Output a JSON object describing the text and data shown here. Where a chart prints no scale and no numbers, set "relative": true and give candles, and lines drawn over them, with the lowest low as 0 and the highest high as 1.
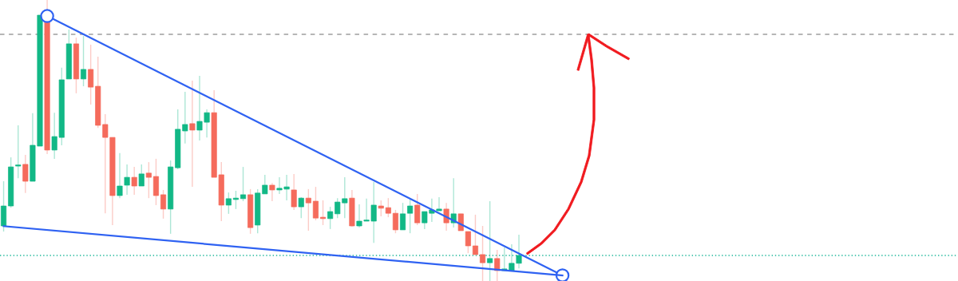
{
  "chart_data": {
    "type": "candlestick",
    "relative": true,
    "categories": [
      null,
      null,
      null,
      null,
      null,
      null,
      null,
      null,
      null,
      null,
      null,
      null,
      null,
      null,
      null,
      null,
      null,
      null,
      null,
      null,
      null,
      null,
      null,
      null,
      null,
      null,
      null,
      null,
      null,
      null,
      null,
      null,
      null,
      null,
      null,
      null,
      null,
      null,
      null,
      null,
      null,
      null,
      null,
      null,
      null,
      null,
      null,
      null,
      null,
      null,
      null,
      null,
      null,
      null,
      null,
      null,
      null,
      null,
      null,
      null,
      null,
      null,
      null,
      null,
      null,
      null,
      null,
      null,
      null,
      null,
      null,
      null,
      null,
      null,
      null,
      null,
      null,
      null,
      null,
      null,
      null,
      null,
      null,
      null,
      null,
      null,
      null,
      null,
      null,
      null,
      null,
      null,
      null,
      null,
      null,
      null,
      null,
      null,
      null,
      null,
      null,
      null,
      null,
      null,
      null,
      null,
      null,
      null,
      null,
      null,
      null,
      null,
      null,
      null,
      null,
      null,
      null,
      null,
      null,
      null,
      null,
      null,
      null,
      null,
      null,
      null,
      null,
      null,
      null,
      null,
      null,
      null
    ],
    "ohlc": [
      [
        0.196,
        0.355,
        0.176,
        0.267
      ],
      [
        0.267,
        0.44,
        0.261,
        0.406
      ],
      [
        0.409,
        0.554,
        0.366,
        0.412
      ],
      [
        0.415,
        0.449,
        0.313,
        0.355
      ],
      [
        0.355,
        0.597,
        0.355,
        0.483
      ],
      [
        0.48,
        0.946,
        0.48,
        0.946
      ],
      [
        0.92,
        1.0,
        0.452,
        0.466
      ],
      [
        0.466,
        0.599,
        0.435,
        0.514
      ],
      [
        0.511,
        0.759,
        0.483,
        0.716
      ],
      [
        0.719,
        0.895,
        0.719,
        0.844
      ],
      [
        0.844,
        0.866,
        0.668,
        0.719
      ],
      [
        0.719,
        0.872,
        0.693,
        0.753
      ],
      [
        0.753,
        0.841,
        0.628,
        0.69
      ],
      [
        0.693,
        0.798,
        0.545,
        0.554
      ],
      [
        0.557,
        0.594,
        0.241,
        0.511
      ],
      [
        0.511,
        0.511,
        0.199,
        0.304
      ],
      [
        0.304,
        0.455,
        0.295,
        0.338
      ],
      [
        0.341,
        0.415,
        0.307,
        0.369
      ],
      [
        0.369,
        0.406,
        0.307,
        0.338
      ],
      [
        0.338,
        0.415,
        0.338,
        0.381
      ],
      [
        0.384,
        0.423,
        0.295,
        0.369
      ],
      [
        0.372,
        0.435,
        0.27,
        0.304
      ],
      [
        0.307,
        0.324,
        0.222,
        0.256
      ],
      [
        0.256,
        0.429,
        0.168,
        0.406
      ],
      [
        0.403,
        0.611,
        0.398,
        0.54
      ],
      [
        0.534,
        0.673,
        0.489,
        0.557
      ],
      [
        0.56,
        0.713,
        0.335,
        0.537
      ],
      [
        0.537,
        0.73,
        0.5,
        0.568
      ],
      [
        0.565,
        0.611,
        0.511,
        0.599
      ],
      [
        0.599,
        0.679,
        0.369,
        0.369
      ],
      [
        0.378,
        0.423,
        0.213,
        0.27
      ],
      [
        0.27,
        0.315,
        0.239,
        0.293
      ],
      [
        0.29,
        0.321,
        0.256,
        0.295
      ],
      [
        0.293,
        0.406,
        0.284,
        0.307
      ],
      [
        0.307,
        0.327,
        0.168,
        0.19
      ],
      [
        0.199,
        0.327,
        0.17,
        0.313
      ],
      [
        0.31,
        0.378,
        0.31,
        0.341
      ],
      [
        0.341,
        0.349,
        0.284,
        0.324
      ],
      [
        0.324,
        0.369,
        0.31,
        0.33
      ],
      [
        0.327,
        0.378,
        0.287,
        0.335
      ],
      [
        0.324,
        0.381,
        0.253,
        0.264
      ],
      [
        0.264,
        0.298,
        0.224,
        0.295
      ],
      [
        0.295,
        0.327,
        0.179,
        0.278
      ],
      [
        0.284,
        0.335,
        0.216,
        0.224
      ],
      [
        0.227,
        0.287,
        0.199,
        0.222
      ],
      [
        0.222,
        0.264,
        0.185,
        0.247
      ],
      [
        0.239,
        0.295,
        0.224,
        0.281
      ],
      [
        0.278,
        0.369,
        0.224,
        0.293
      ],
      [
        0.295,
        0.324,
        0.193,
        0.196
      ],
      [
        0.196,
        0.273,
        0.19,
        0.213
      ],
      [
        0.213,
        0.293,
        0.213,
        0.216
      ],
      [
        0.213,
        0.352,
        0.136,
        0.27
      ],
      [
        0.267,
        0.287,
        0.23,
        0.259
      ],
      [
        0.261,
        0.295,
        0.227,
        0.241
      ],
      [
        0.241,
        0.253,
        0.17,
        0.182
      ],
      [
        0.182,
        0.278,
        0.182,
        0.239
      ],
      [
        0.241,
        0.29,
        0.17,
        0.267
      ],
      [
        0.27,
        0.31,
        0.199,
        0.207
      ],
      [
        0.207,
        0.247,
        0.185,
        0.247
      ],
      [
        0.241,
        0.293,
        0.21,
        0.253
      ],
      [
        0.25,
        0.298,
        0.25,
        0.256
      ],
      [
        0.256,
        0.278,
        0.179,
        0.207
      ],
      [
        0.207,
        0.366,
        0.19,
        0.239
      ],
      [
        0.239,
        0.239,
        0.179,
        0.179
      ],
      [
        0.176,
        0.176,
        0.099,
        0.125
      ],
      [
        0.125,
        0.236,
        0.094,
        0.094
      ],
      [
        0.094,
        0.196,
        0.0,
        0.065
      ],
      [
        0.065,
        0.284,
        0.0,
        0.08
      ],
      [
        0.08,
        0.111,
        0.0,
        0.037
      ],
      [
        0.037,
        0.119,
        0.037,
        0.043
      ],
      [
        0.037,
        0.131,
        0.037,
        0.063
      ],
      [
        0.063,
        0.165,
        0.045,
        0.091
      ],
      null,
      null,
      null,
      null,
      null,
      null,
      null,
      null,
      null,
      null,
      null,
      null,
      null,
      null,
      null,
      null,
      null,
      null,
      null,
      null,
      null,
      null,
      null,
      null,
      null,
      null,
      null,
      null,
      null,
      null,
      null,
      null,
      null,
      null,
      null,
      null,
      null,
      null,
      null,
      null,
      null,
      null,
      null,
      null,
      null,
      null,
      null,
      null,
      null,
      null,
      null,
      null,
      null,
      null,
      null,
      null,
      null,
      null,
      null,
      null
    ],
    "colors": [
      "#12b886",
      "#12b886",
      "#12b886",
      "#f56b5c",
      "#12b886",
      "#12b886",
      "#f56b5c",
      "#12b886",
      "#12b886",
      "#12b886",
      "#f56b5c",
      "#12b886",
      "#f56b5c",
      "#f56b5c",
      "#f56b5c",
      "#f56b5c",
      "#12b886",
      "#12b886",
      "#f56b5c",
      "#12b886",
      "#f56b5c",
      "#f56b5c",
      "#f56b5c",
      "#12b886",
      "#12b886",
      "#12b886",
      "#f56b5c",
      "#12b886",
      "#12b886",
      "#f56b5c",
      "#f56b5c",
      "#12b886",
      "#12b886",
      "#12b886",
      "#f56b5c",
      "#12b886",
      "#12b886",
      "#f56b5c",
      "#12b886",
      "#12b886",
      "#f56b5c",
      "#12b886",
      "#f56b5c",
      "#f56b5c",
      "#f56b5c",
      "#12b886",
      "#12b886",
      "#12b886",
      "#f56b5c",
      "#12b886",
      "#12b886",
      "#12b886",
      "#f56b5c",
      "#f56b5c",
      "#f56b5c",
      "#12b886",
      "#12b886",
      "#f56b5c",
      "#12b886",
      "#12b886",
      "#12b886",
      "#f56b5c",
      "#12b886",
      "#f56b5c",
      "#f56b5c",
      "#f56b5c",
      "#f56b5c",
      "#12b886",
      "#f56b5c",
      "#12b886",
      "#12b886",
      "#12b886",
      null,
      null,
      null,
      null,
      null,
      null,
      null,
      null,
      null,
      null,
      null,
      null,
      null,
      null,
      null,
      null,
      null,
      null,
      null,
      null,
      null,
      null,
      null,
      null,
      null,
      null,
      null,
      null,
      null,
      null,
      null,
      null,
      null,
      null,
      null,
      null,
      null,
      null,
      null,
      null,
      null,
      null,
      null,
      null,
      null,
      null,
      null,
      null,
      null,
      null,
      null,
      null,
      null,
      null,
      null,
      null,
      null,
      null,
      null,
      null
    ],
    "series": [
      {
        "type": "line",
        "color": "#2f62f2",
        "marker": "circle",
        "values": [
          null,
          null,
          null,
          null,
          null,
          null,
          0.943,
          null,
          null,
          null,
          null,
          null,
          null,
          null,
          null,
          null,
          null,
          null,
          null,
          null,
          null,
          null,
          null,
          null,
          null,
          null,
          null,
          null,
          null,
          null,
          null,
          null,
          null,
          null,
          null,
          null,
          null,
          null,
          null,
          null,
          null,
          null,
          null,
          null,
          null,
          null,
          null,
          null,
          null,
          null,
          null,
          null,
          null,
          null,
          null,
          null,
          null,
          null,
          null,
          null,
          null,
          null,
          null,
          null,
          null,
          null,
          null,
          null,
          null,
          null,
          null,
          null,
          null,
          null,
          null,
          null,
          null,
          0.02,
          null,
          null,
          null,
          null,
          null,
          null,
          null,
          null,
          null,
          null,
          null,
          null,
          null,
          null,
          null,
          null,
          null,
          null,
          null,
          null,
          null,
          null,
          null,
          null,
          null,
          null,
          null,
          null,
          null,
          null,
          null,
          null,
          null,
          null,
          null,
          null,
          null,
          null,
          null,
          null,
          null,
          null,
          null,
          null,
          null,
          null,
          null,
          null,
          null,
          null,
          null,
          null,
          null,
          null
        ]
      },
      {
        "type": "line",
        "color": "#2f62f2",
        "values": [
          0.195,
          null,
          null,
          null,
          null,
          null,
          null,
          null,
          null,
          null,
          null,
          null,
          null,
          null,
          null,
          null,
          null,
          null,
          null,
          null,
          null,
          null,
          null,
          null,
          null,
          null,
          null,
          null,
          null,
          null,
          null,
          null,
          null,
          null,
          null,
          null,
          null,
          null,
          null,
          null,
          null,
          null,
          null,
          null,
          null,
          null,
          null,
          null,
          null,
          null,
          null,
          null,
          null,
          null,
          null,
          null,
          null,
          null,
          null,
          null,
          null,
          null,
          null,
          null,
          null,
          null,
          null,
          null,
          null,
          null,
          null,
          null,
          null,
          null,
          null,
          null,
          null,
          0.02,
          null,
          null,
          null,
          null,
          null,
          null,
          null,
          null,
          null,
          null,
          null,
          null,
          null,
          null,
          null,
          null,
          null,
          null,
          null,
          null,
          null,
          null,
          null,
          null,
          null,
          null,
          null,
          null,
          null,
          null,
          null,
          null,
          null,
          null,
          null,
          null,
          null,
          null,
          null,
          null,
          null,
          null,
          null,
          null,
          null,
          null,
          null,
          null,
          null,
          null,
          null,
          null,
          null,
          null
        ]
      }
    ],
    "ref_lines": [
      {
        "axis": "y",
        "value": 0.878,
        "color": "#9e9e9e",
        "line_style": "dashed"
      },
      {
        "axis": "y",
        "value": 0.091,
        "color": "#1fb89a",
        "line_style": "dotted"
      }
    ]
  }
}
